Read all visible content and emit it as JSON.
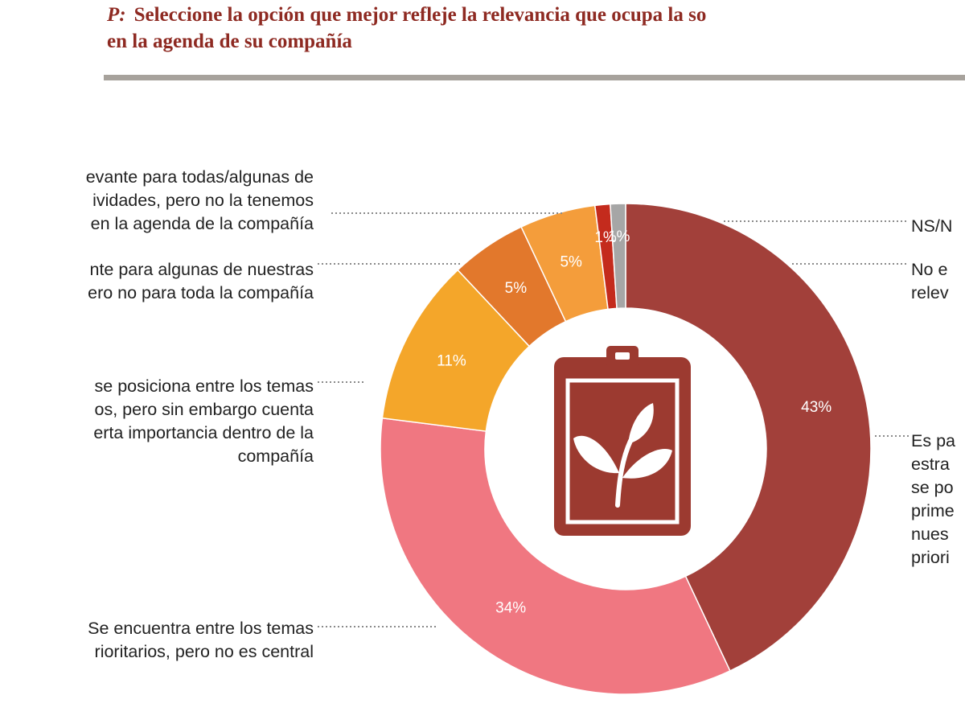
{
  "question": {
    "prefix": "P:",
    "line1": "Seleccione la opción que mejor refleje la relevancia que ocupa la so",
    "line2": "en la agenda de su compañía"
  },
  "colors": {
    "title": "#8e2a22",
    "rule": "#a7a29c",
    "leader": "#8a8a8a",
    "icon": "#9c3a30"
  },
  "center_icon": "clipboard-leaf-icon",
  "chart_data": {
    "type": "pie",
    "variant": "donut",
    "slices": [
      {
        "value": 43,
        "label": "43%",
        "color": "#a2403a"
      },
      {
        "value": 34,
        "label": "34%",
        "color": "#f07781"
      },
      {
        "value": 11,
        "label": "11%",
        "color": "#f4a62a"
      },
      {
        "value": 5,
        "label": "5%",
        "color": "#e2782c"
      },
      {
        "value": 5,
        "label": "5%",
        "color": "#f49d3b"
      },
      {
        "value": 1,
        "label": "1%",
        "color": "#c42b1d"
      },
      {
        "value": 1,
        "label": "1%",
        "color": "#a6a6a6"
      }
    ],
    "categories": [
      [
        "Es pa",
        "estra",
        "se po",
        "prime",
        "nues",
        "priori"
      ],
      [
        "Se encuentra entre los temas",
        "rioritarios, pero no es central"
      ],
      [
        "se posiciona entre los temas",
        "os, pero sin embargo cuenta",
        "erta importancia dentro de la",
        "compañía"
      ],
      [
        "nte para algunas de nuestras",
        "ero no para toda la compañía"
      ],
      [
        "evante para todas/algunas de",
        "ividades, pero no la tenemos",
        "en la agenda de la compañía"
      ],
      [
        "No e",
        "relev"
      ],
      [
        "NS/N"
      ]
    ]
  }
}
